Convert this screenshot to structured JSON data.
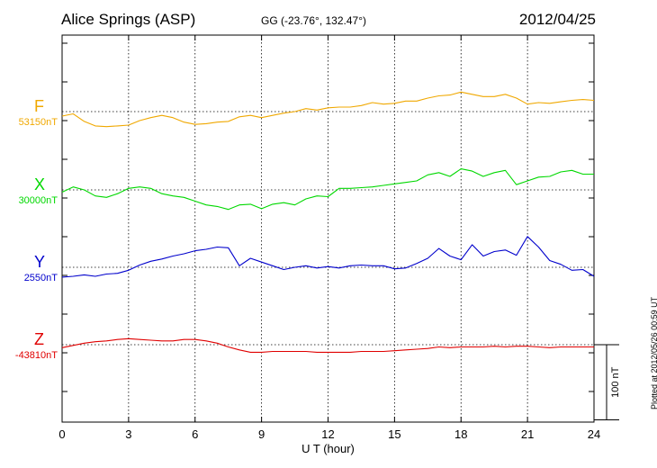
{
  "header": {
    "station": "Alice Springs (ASP)",
    "coords": "GG (-23.76°, 132.47°)",
    "date": "2012/04/25"
  },
  "plot_stamp": "Plotted at 2012/05/26 00:59 UT",
  "chart_data": {
    "type": "line",
    "xlabel": "U T (hour)",
    "xlim": [
      0,
      24
    ],
    "xticks": [
      0,
      3,
      6,
      9,
      12,
      15,
      18,
      21,
      24
    ],
    "grid": true,
    "scale_bar": "100 nT",
    "scale_nT": 100,
    "series": [
      {
        "name": "F",
        "baseline_label": "53150nT",
        "baseline": 53150,
        "color": "#f0a800",
        "x": [
          0,
          0.5,
          1,
          1.5,
          2,
          2.5,
          3,
          3.5,
          4,
          4.5,
          5,
          5.5,
          6,
          6.5,
          7,
          7.5,
          8,
          8.5,
          9,
          9.5,
          10,
          10.5,
          11,
          11.5,
          12,
          12.5,
          13,
          13.5,
          14,
          14.5,
          15,
          15.5,
          16,
          16.5,
          17,
          17.5,
          18,
          18.5,
          19,
          19.5,
          20,
          20.5,
          21,
          21.5,
          22,
          22.5,
          23,
          23.5,
          24
        ],
        "y": [
          53144,
          53147,
          53137,
          53131,
          53130,
          53131,
          53132,
          53138,
          53142,
          53145,
          53142,
          53136,
          53133,
          53134,
          53136,
          53137,
          53143,
          53145,
          53142,
          53145,
          53148,
          53150,
          53154,
          53152,
          53155,
          53156,
          53156,
          53158,
          53162,
          53160,
          53161,
          53164,
          53164,
          53168,
          53171,
          53172,
          53176,
          53173,
          53170,
          53170,
          53173,
          53168,
          53160,
          53162,
          53161,
          53163,
          53165,
          53166,
          53165
        ]
      },
      {
        "name": "X",
        "baseline_label": "30000nT",
        "baseline": 30000,
        "color": "#00d800",
        "x": [
          0,
          0.5,
          1,
          1.5,
          2,
          2.5,
          3,
          3.5,
          4,
          4.5,
          5,
          5.5,
          6,
          6.5,
          7,
          7.5,
          8,
          8.5,
          9,
          9.5,
          10,
          10.5,
          11,
          11.5,
          12,
          12.5,
          13,
          13.5,
          14,
          14.5,
          15,
          15.5,
          16,
          16.5,
          17,
          17.5,
          18,
          18.5,
          19,
          19.5,
          20,
          20.5,
          21,
          21.5,
          22,
          22.5,
          23,
          23.5,
          24
        ],
        "y": [
          29997,
          30004,
          30000,
          29992,
          29990,
          29995,
          30002,
          30004,
          30002,
          29995,
          29992,
          29990,
          29985,
          29980,
          29978,
          29974,
          29980,
          29981,
          29975,
          29981,
          29983,
          29980,
          29988,
          29992,
          29991,
          30002,
          30002,
          30003,
          30004,
          30006,
          30008,
          30010,
          30012,
          30020,
          30023,
          30018,
          30028,
          30025,
          30018,
          30023,
          30026,
          30007,
          30012,
          30017,
          30018,
          30024,
          30026,
          30021,
          30021
        ]
      },
      {
        "name": "Y",
        "baseline_label": "2550nT",
        "baseline": 2550,
        "color": "#0000cc",
        "x": [
          0,
          0.5,
          1,
          1.5,
          2,
          2.5,
          3,
          3.5,
          4,
          4.5,
          5,
          5.5,
          6,
          6.5,
          7,
          7.5,
          8,
          8.5,
          9,
          9.5,
          10,
          10.5,
          11,
          11.5,
          12,
          12.5,
          13,
          13.5,
          14,
          14.5,
          15,
          15.5,
          16,
          16.5,
          17,
          17.5,
          18,
          18.5,
          19,
          19.5,
          20,
          20.5,
          21,
          21.5,
          22,
          22.5,
          23,
          23.5,
          24
        ],
        "y": [
          2537,
          2538,
          2540,
          2538,
          2541,
          2542,
          2546,
          2553,
          2558,
          2561,
          2565,
          2568,
          2572,
          2574,
          2577,
          2576,
          2552,
          2562,
          2557,
          2552,
          2547,
          2550,
          2552,
          2549,
          2551,
          2549,
          2552,
          2553,
          2552,
          2552,
          2548,
          2549,
          2555,
          2562,
          2575,
          2565,
          2560,
          2580,
          2565,
          2571,
          2573,
          2566,
          2591,
          2577,
          2559,
          2554,
          2546,
          2547,
          2538
        ]
      },
      {
        "name": "Z",
        "baseline_label": "-43810nT",
        "baseline": -43810,
        "color": "#e00000",
        "x": [
          0,
          0.5,
          1,
          1.5,
          2,
          2.5,
          3,
          3.5,
          4,
          4.5,
          5,
          5.5,
          6,
          6.5,
          7,
          7.5,
          8,
          8.5,
          9,
          9.5,
          10,
          10.5,
          11,
          11.5,
          12,
          12.5,
          13,
          13.5,
          14,
          14.5,
          15,
          15.5,
          16,
          16.5,
          17,
          17.5,
          18,
          18.5,
          19,
          19.5,
          20,
          20.5,
          21,
          21.5,
          22,
          22.5,
          23,
          23.5,
          24
        ],
        "y": [
          -43814,
          -43811,
          -43808,
          -43806,
          -43805,
          -43803,
          -43802,
          -43803,
          -43804,
          -43805,
          -43805,
          -43803,
          -43803,
          -43805,
          -43808,
          -43813,
          -43817,
          -43820,
          -43820,
          -43819,
          -43819,
          -43819,
          -43819,
          -43820,
          -43820,
          -43820,
          -43820,
          -43819,
          -43819,
          -43819,
          -43818,
          -43817,
          -43816,
          -43815,
          -43813,
          -43814,
          -43813,
          -43813,
          -43813,
          -43812,
          -43813,
          -43812,
          -43812,
          -43813,
          -43814,
          -43813,
          -43813,
          -43813,
          -43813
        ]
      }
    ]
  }
}
